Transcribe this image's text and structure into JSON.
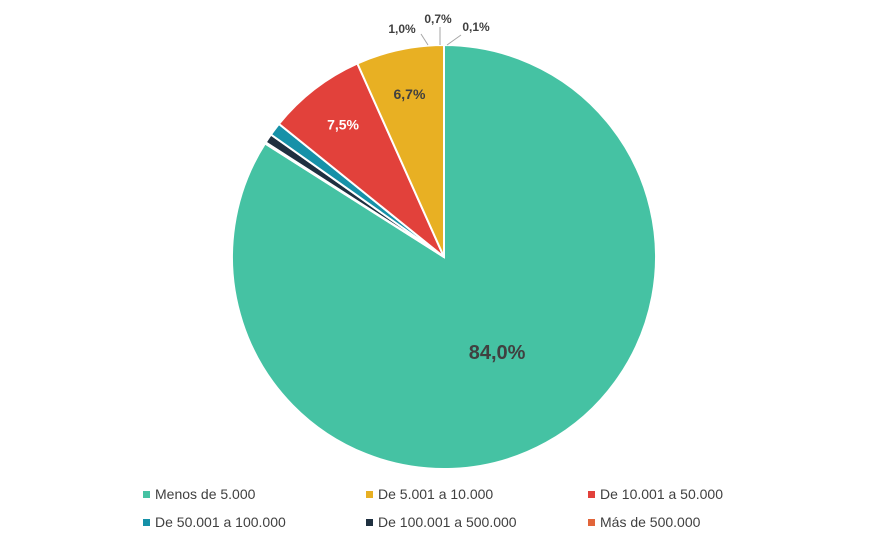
{
  "chart_data": {
    "type": "pie",
    "title": "",
    "slices": [
      {
        "label": "Menos de 5.000",
        "value": 84.0,
        "display": "84,0%",
        "color": "#45C2A3"
      },
      {
        "label": "Más de 500.000",
        "value": 0.1,
        "display": "0,1%",
        "color": "#E2653A"
      },
      {
        "label": "De 100.001 a 500.000",
        "value": 0.7,
        "display": "0,7%",
        "color": "#1F3040"
      },
      {
        "label": "De 50.001 a 100.000",
        "value": 1.0,
        "display": "1,0%",
        "color": "#1691A8"
      },
      {
        "label": "De 10.001 a 50.000",
        "value": 7.5,
        "display": "7,5%",
        "color": "#E2413B"
      },
      {
        "label": "De 5.001 a 10.000",
        "value": 6.7,
        "display": "6,7%",
        "color": "#E8B023"
      }
    ],
    "legend": {
      "placement": "bottom",
      "order": [
        "Menos de 5.000",
        "De 5.001 a 10.000",
        "De 10.001 a 50.000",
        "De 50.001 a 100.000",
        "De 100.001 a 500.000",
        "Más de 500.000"
      ]
    }
  }
}
